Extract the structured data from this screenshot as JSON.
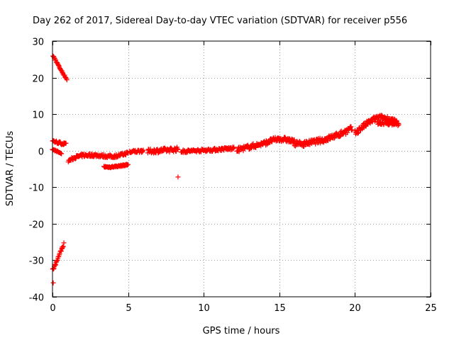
{
  "chart_data": {
    "type": "scatter",
    "title": "Day 262 of 2017, Sidereal Day-to-day VTEC variation (SDTVAR) for receiver p556",
    "xlabel": "GPS time / hours",
    "ylabel": "SDTVAR / TECUs",
    "xlim": [
      0,
      25
    ],
    "ylim": [
      -40,
      30
    ],
    "xticks": [
      0,
      5,
      10,
      15,
      20,
      25
    ],
    "yticks": [
      -40,
      -30,
      -20,
      -10,
      0,
      10,
      20,
      30
    ],
    "grid": true,
    "marker": "+",
    "marker_color": "#ff0000",
    "segments": [
      {
        "name": "early-high-arc",
        "x": [
          0.0,
          0.2,
          0.4,
          0.6,
          0.8,
          0.95
        ],
        "y": [
          26.2,
          24.8,
          23.3,
          21.8,
          20.5,
          19.5
        ],
        "spread": 0.4
      },
      {
        "name": "early-level-arc",
        "x": [
          0.0,
          0.3,
          0.6,
          0.9
        ],
        "y": [
          2.7,
          2.3,
          2.0,
          1.7
        ],
        "spread": 0.7
      },
      {
        "name": "early-small-arc",
        "x": [
          0.0,
          0.2,
          0.4,
          0.6
        ],
        "y": [
          0.3,
          0.0,
          -0.4,
          -0.8
        ],
        "spread": 0.3
      },
      {
        "name": "early-negative-arc",
        "x": [
          0.0,
          0.15,
          0.3,
          0.45,
          0.6,
          0.75
        ],
        "y": [
          -32.8,
          -31.5,
          -30.0,
          -28.5,
          -27.0,
          -25.5
        ],
        "spread": 0.6
      },
      {
        "name": "long-arc-1",
        "x": [
          1.05,
          1.5,
          2.0,
          2.5,
          3.0,
          3.5,
          4.0,
          4.5,
          5.0
        ],
        "y": [
          -2.8,
          -1.8,
          -1.3,
          -1.2,
          -1.3,
          -1.5,
          -1.6,
          -1.2,
          -0.6
        ],
        "spread": 0.8
      },
      {
        "name": "negative-arc",
        "x": [
          3.4,
          3.8,
          4.2,
          4.6,
          5.0
        ],
        "y": [
          -4.4,
          -4.5,
          -4.3,
          -4.1,
          -3.8
        ],
        "spread": 0.4
      },
      {
        "name": "arc-2",
        "x": [
          5.1,
          5.5,
          6.0
        ],
        "y": [
          -0.4,
          -0.2,
          0.0
        ],
        "spread": 0.8
      },
      {
        "name": "arc-3",
        "x": [
          6.3,
          7.0,
          7.7,
          8.3
        ],
        "y": [
          -0.2,
          0.0,
          0.2,
          0.4
        ],
        "spread": 1.2
      },
      {
        "name": "arc-4",
        "x": [
          8.5,
          9.5,
          10.5,
          11.5,
          12.0
        ],
        "y": [
          -0.2,
          0.0,
          0.2,
          0.5,
          0.6
        ],
        "spread": 0.8
      },
      {
        "name": "arc-5",
        "x": [
          12.2,
          13.0,
          14.0,
          14.5,
          15.0,
          15.5,
          16.0
        ],
        "y": [
          0.2,
          1.0,
          2.0,
          2.8,
          3.2,
          3.0,
          2.4
        ],
        "spread": 1.3
      },
      {
        "name": "arc-6",
        "x": [
          16.0,
          16.5,
          17.0,
          17.5,
          18.0,
          18.5,
          19.0
        ],
        "y": [
          2.0,
          1.8,
          2.2,
          2.6,
          3.0,
          3.8,
          4.5
        ],
        "spread": 1.4
      },
      {
        "name": "arc-7",
        "x": [
          19.0,
          19.5,
          19.8
        ],
        "y": [
          4.5,
          5.5,
          6.0
        ],
        "spread": 1.6
      },
      {
        "name": "arc-8",
        "x": [
          20.0,
          20.5,
          21.0,
          21.5,
          22.0,
          22.5,
          22.8
        ],
        "y": [
          4.8,
          6.5,
          8.0,
          9.0,
          9.0,
          8.2,
          7.5
        ],
        "spread": 1.5
      },
      {
        "name": "arc-9",
        "x": [
          21.5,
          22.0,
          22.5,
          22.9
        ],
        "y": [
          7.5,
          7.5,
          7.4,
          7.2
        ],
        "spread": 0.8
      }
    ],
    "outliers": [
      {
        "x": 8.3,
        "y": -7.2
      },
      {
        "x": 0.05,
        "y": -36.2
      }
    ]
  }
}
